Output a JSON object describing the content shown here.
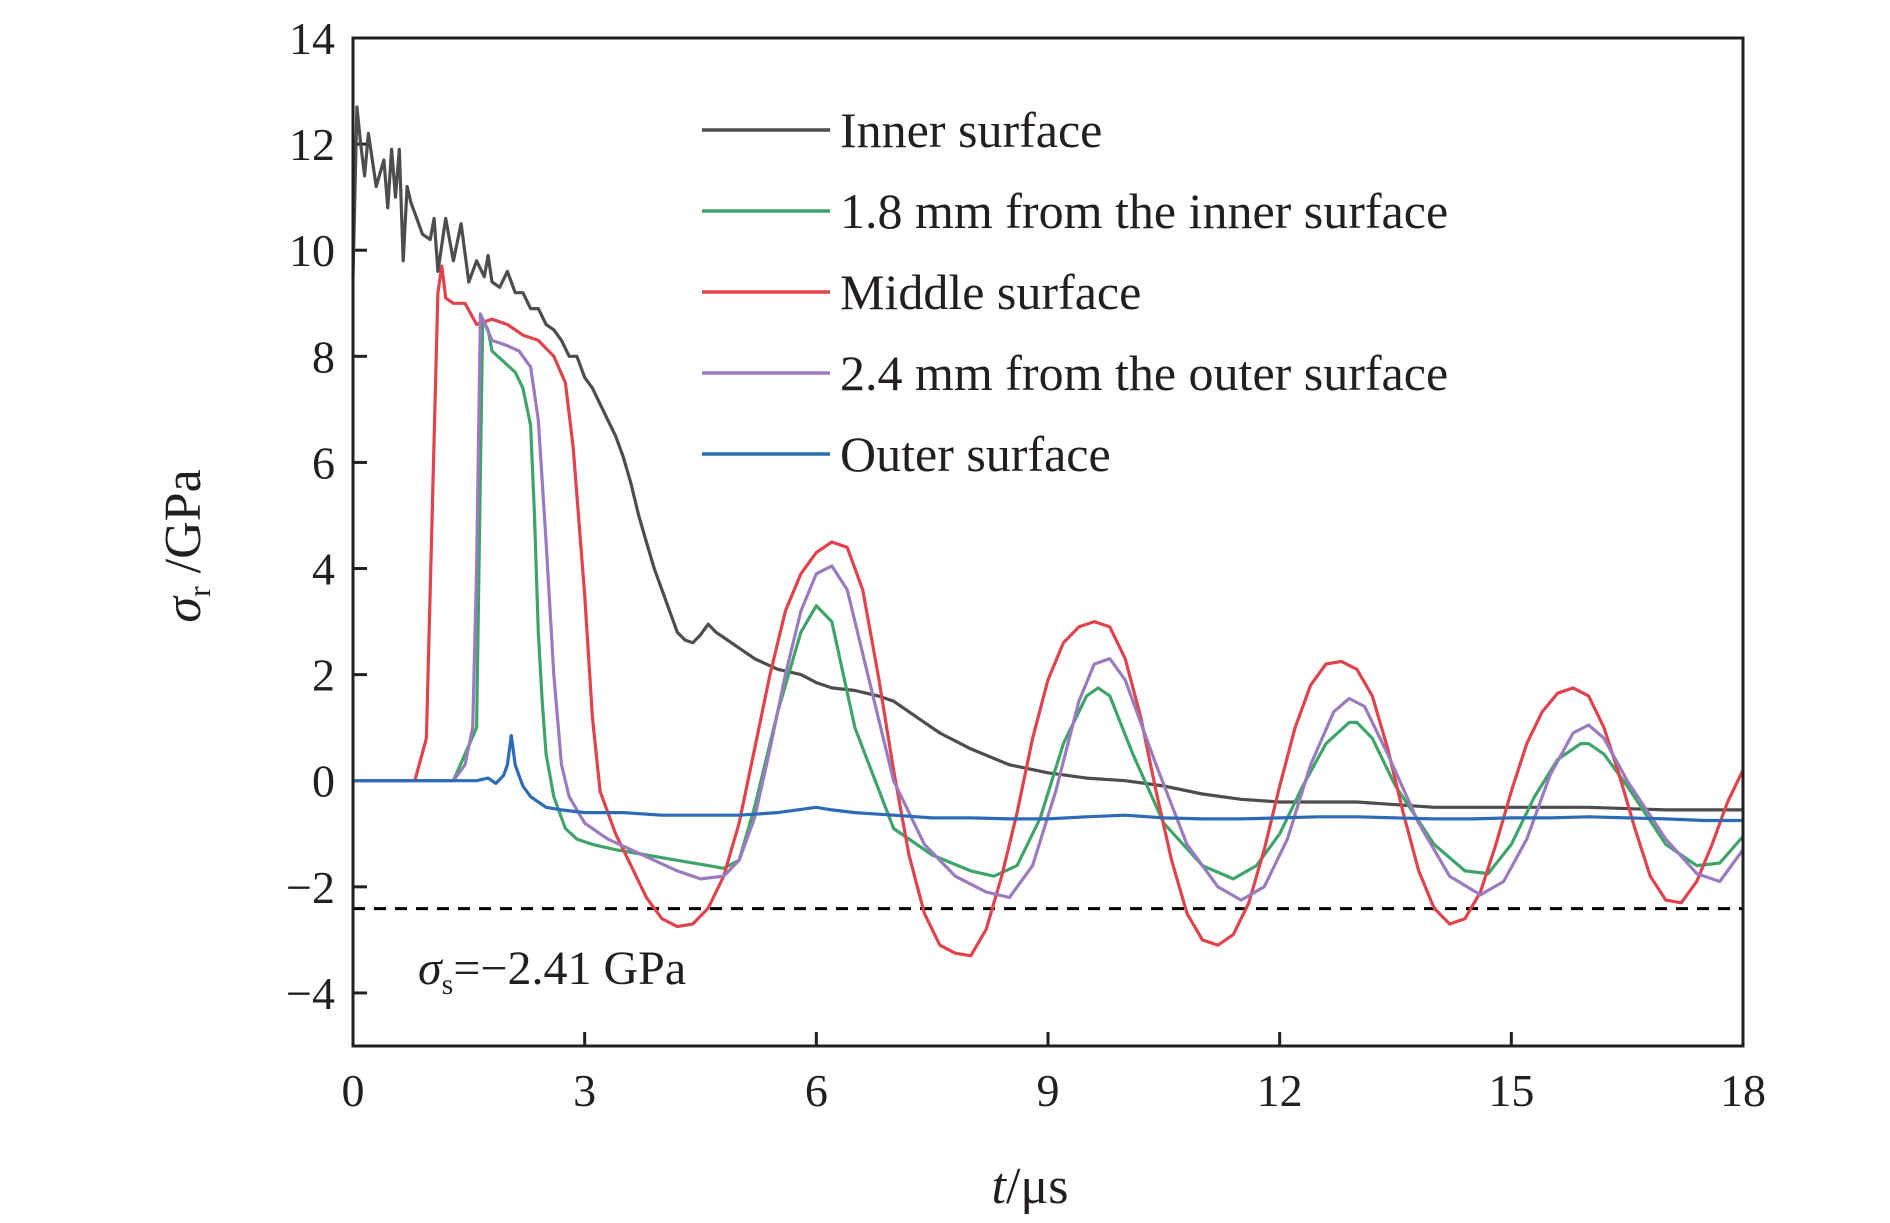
{
  "chart_data": {
    "type": "line",
    "xlabel": {
      "var": "t",
      "unit": "/μs"
    },
    "ylabel": {
      "var": "σ",
      "sub": "r",
      "unit": " /GPa"
    },
    "xlim": [
      0,
      18
    ],
    "ylim": [
      -5,
      14
    ],
    "xticks": [
      "0",
      "3",
      "6",
      "9",
      "12",
      "15",
      "18"
    ],
    "yticks": [
      "−4",
      "−2",
      "0",
      "2",
      "4",
      "6",
      "8",
      "10",
      "12",
      "14"
    ],
    "xtick_values": [
      0,
      3,
      6,
      9,
      12,
      15,
      18
    ],
    "ytick_values": [
      -4,
      -2,
      0,
      2,
      4,
      6,
      8,
      10,
      12,
      14
    ],
    "grid": false,
    "legend_position": "top-right",
    "reference_line": {
      "y": -2.41,
      "style": "dashed",
      "color": "#000000"
    },
    "annotation": {
      "var": "σ",
      "sub": "s",
      "text": "=−2.41 GPa"
    },
    "series": [
      {
        "name": "Inner surface",
        "color": "#4d4d4d",
        "x": [
          0,
          0.05,
          0.1,
          0.15,
          0.2,
          0.3,
          0.4,
          0.45,
          0.5,
          0.55,
          0.6,
          0.65,
          0.7,
          0.75,
          0.8,
          0.9,
          1.0,
          1.05,
          1.1,
          1.2,
          1.3,
          1.4,
          1.5,
          1.6,
          1.7,
          1.75,
          1.8,
          1.9,
          2.0,
          2.1,
          2.2,
          2.3,
          2.4,
          2.5,
          2.6,
          2.7,
          2.8,
          2.9,
          3.0,
          3.1,
          3.2,
          3.3,
          3.4,
          3.5,
          3.6,
          3.7,
          3.8,
          3.9,
          4.0,
          4.1,
          4.2,
          4.3,
          4.4,
          4.5,
          4.6,
          4.7,
          4.8,
          5.0,
          5.2,
          5.5,
          5.8,
          6.0,
          6.2,
          6.5,
          6.8,
          7.0,
          7.2,
          7.4,
          7.6,
          8.0,
          8.5,
          9.0,
          9.5,
          10.0,
          10.5,
          11.0,
          11.5,
          12.0,
          13.0,
          14.0,
          15.0,
          16.0,
          17.0,
          18.0
        ],
        "values": [
          9.5,
          12.7,
          12.0,
          11.4,
          12.2,
          11.2,
          11.7,
          10.8,
          11.9,
          11.0,
          11.9,
          9.8,
          11.2,
          10.9,
          10.7,
          10.3,
          10.2,
          10.6,
          9.6,
          10.6,
          9.8,
          10.5,
          9.4,
          9.8,
          9.5,
          9.9,
          9.4,
          9.3,
          9.6,
          9.2,
          9.2,
          8.9,
          8.9,
          8.6,
          8.5,
          8.3,
          8.0,
          8.0,
          7.6,
          7.4,
          7.1,
          6.8,
          6.5,
          6.1,
          5.6,
          5.0,
          4.5,
          4.0,
          3.6,
          3.2,
          2.8,
          2.65,
          2.6,
          2.75,
          2.95,
          2.8,
          2.7,
          2.5,
          2.3,
          2.1,
          2.0,
          1.85,
          1.75,
          1.7,
          1.6,
          1.5,
          1.3,
          1.1,
          0.9,
          0.6,
          0.3,
          0.15,
          0.05,
          0.0,
          -0.1,
          -0.25,
          -0.35,
          -0.4,
          -0.4,
          -0.5,
          -0.5,
          -0.5,
          -0.55,
          -0.55
        ]
      },
      {
        "name": "1.8 mm from the inner surface",
        "color": "#3fa46a",
        "x": [
          0,
          1.3,
          1.45,
          1.6,
          1.68,
          1.75,
          1.8,
          1.95,
          2.1,
          2.2,
          2.3,
          2.35,
          2.4,
          2.45,
          2.5,
          2.6,
          2.75,
          2.9,
          3.1,
          3.4,
          3.8,
          4.2,
          4.6,
          4.8,
          5.0,
          5.2,
          5.5,
          5.8,
          6.0,
          6.2,
          6.5,
          7.0,
          7.5,
          8.0,
          8.3,
          8.6,
          8.9,
          9.2,
          9.5,
          9.65,
          9.8,
          10.1,
          10.5,
          11.0,
          11.4,
          11.7,
          12.0,
          12.3,
          12.6,
          12.9,
          13.0,
          13.2,
          13.5,
          14.0,
          14.4,
          14.7,
          15.0,
          15.3,
          15.6,
          15.9,
          16.0,
          16.2,
          16.5,
          17.0,
          17.4,
          17.7,
          18.0
        ],
        "values": [
          0,
          0,
          0.5,
          1.0,
          8.7,
          8.5,
          8.1,
          7.9,
          7.7,
          7.4,
          6.7,
          5.0,
          2.8,
          1.5,
          0.5,
          -0.3,
          -0.9,
          -1.1,
          -1.2,
          -1.3,
          -1.4,
          -1.5,
          -1.6,
          -1.65,
          -1.5,
          -0.5,
          1.3,
          2.8,
          3.3,
          3.0,
          1.0,
          -0.9,
          -1.4,
          -1.7,
          -1.8,
          -1.6,
          -0.7,
          0.7,
          1.6,
          1.75,
          1.6,
          0.5,
          -0.8,
          -1.6,
          -1.85,
          -1.6,
          -1.0,
          -0.1,
          0.7,
          1.1,
          1.1,
          0.8,
          -0.1,
          -1.2,
          -1.7,
          -1.75,
          -1.2,
          -0.3,
          0.4,
          0.7,
          0.7,
          0.5,
          -0.1,
          -1.2,
          -1.6,
          -1.55,
          -1.05
        ]
      },
      {
        "name": "Middle surface",
        "color": "#e0434c",
        "x": [
          0,
          0.8,
          0.95,
          1.1,
          1.15,
          1.2,
          1.3,
          1.45,
          1.6,
          1.8,
          2.0,
          2.2,
          2.4,
          2.6,
          2.75,
          2.85,
          3.0,
          3.1,
          3.2,
          3.4,
          3.6,
          3.8,
          4.0,
          4.2,
          4.4,
          4.6,
          4.8,
          5.0,
          5.2,
          5.4,
          5.6,
          5.8,
          6.0,
          6.2,
          6.4,
          6.6,
          6.8,
          7.0,
          7.2,
          7.4,
          7.6,
          7.8,
          8.0,
          8.2,
          8.4,
          8.6,
          8.8,
          9.0,
          9.2,
          9.4,
          9.6,
          9.8,
          10.0,
          10.2,
          10.4,
          10.6,
          10.8,
          11.0,
          11.2,
          11.4,
          11.6,
          11.8,
          12.0,
          12.2,
          12.4,
          12.6,
          12.8,
          13.0,
          13.2,
          13.4,
          13.6,
          13.8,
          14.0,
          14.2,
          14.4,
          14.6,
          14.8,
          15.0,
          15.2,
          15.4,
          15.6,
          15.8,
          16.0,
          16.2,
          16.4,
          16.6,
          16.8,
          17.0,
          17.2,
          17.4,
          17.6,
          17.8,
          18.0
        ],
        "values": [
          0,
          0,
          0.8,
          9.2,
          9.7,
          9.1,
          9.0,
          9.0,
          8.6,
          8.7,
          8.6,
          8.4,
          8.3,
          8.0,
          7.5,
          6.3,
          3.5,
          1.2,
          -0.2,
          -1.0,
          -1.6,
          -2.2,
          -2.6,
          -2.75,
          -2.7,
          -2.4,
          -1.8,
          -0.8,
          0.6,
          2.0,
          3.2,
          3.9,
          4.3,
          4.5,
          4.4,
          3.6,
          2.0,
          0.2,
          -1.4,
          -2.5,
          -3.1,
          -3.25,
          -3.3,
          -2.8,
          -1.8,
          -0.6,
          0.8,
          1.9,
          2.6,
          2.9,
          3.0,
          2.9,
          2.3,
          1.2,
          -0.2,
          -1.5,
          -2.5,
          -3.0,
          -3.1,
          -2.9,
          -2.3,
          -1.3,
          -0.1,
          1.0,
          1.8,
          2.2,
          2.25,
          2.1,
          1.6,
          0.6,
          -0.6,
          -1.7,
          -2.4,
          -2.7,
          -2.6,
          -2.1,
          -1.2,
          -0.2,
          0.7,
          1.3,
          1.65,
          1.75,
          1.6,
          1.0,
          0.1,
          -0.9,
          -1.8,
          -2.25,
          -2.3,
          -1.9,
          -1.2,
          -0.4,
          0.2
        ]
      },
      {
        "name": "2.4 mm from the outer surface",
        "color": "#9a7bbe",
        "x": [
          0,
          1.3,
          1.45,
          1.55,
          1.6,
          1.65,
          1.8,
          2.0,
          2.15,
          2.3,
          2.4,
          2.5,
          2.6,
          2.7,
          2.8,
          3.0,
          3.3,
          3.6,
          3.9,
          4.2,
          4.5,
          4.8,
          5.0,
          5.2,
          5.4,
          5.6,
          5.8,
          6.0,
          6.2,
          6.4,
          6.7,
          7.0,
          7.4,
          7.8,
          8.2,
          8.5,
          8.8,
          9.1,
          9.4,
          9.6,
          9.8,
          10.0,
          10.4,
          10.8,
          11.2,
          11.5,
          11.8,
          12.1,
          12.4,
          12.7,
          12.9,
          13.1,
          13.4,
          13.8,
          14.2,
          14.6,
          14.9,
          15.2,
          15.5,
          15.8,
          16.0,
          16.2,
          16.5,
          17.0,
          17.4,
          17.7,
          18.0
        ],
        "values": [
          0,
          0,
          0.3,
          1.0,
          4.0,
          8.8,
          8.3,
          8.2,
          8.1,
          7.8,
          6.8,
          4.5,
          2.0,
          0.3,
          -0.3,
          -0.8,
          -1.1,
          -1.3,
          -1.5,
          -1.7,
          -1.85,
          -1.8,
          -1.5,
          -0.7,
          0.6,
          2.0,
          3.2,
          3.9,
          4.05,
          3.6,
          1.8,
          0.0,
          -1.2,
          -1.8,
          -2.1,
          -2.2,
          -1.6,
          -0.2,
          1.5,
          2.2,
          2.3,
          1.9,
          0.3,
          -1.2,
          -2.0,
          -2.25,
          -2.0,
          -1.1,
          0.3,
          1.3,
          1.55,
          1.4,
          0.5,
          -0.8,
          -1.8,
          -2.15,
          -1.9,
          -1.1,
          0.1,
          0.9,
          1.05,
          0.8,
          0.0,
          -1.1,
          -1.75,
          -1.9,
          -1.3
        ]
      },
      {
        "name": "Outer surface",
        "color": "#2e6bb6",
        "x": [
          0,
          1.6,
          1.75,
          1.85,
          1.95,
          2.0,
          2.05,
          2.1,
          2.15,
          2.2,
          2.3,
          2.5,
          2.7,
          3.0,
          3.5,
          4.0,
          4.5,
          5.0,
          5.5,
          6.0,
          6.2,
          6.5,
          7.0,
          7.5,
          8.0,
          8.5,
          9.0,
          9.5,
          10.0,
          10.5,
          11.0,
          11.5,
          12.0,
          12.5,
          13.0,
          13.5,
          14.0,
          14.5,
          15.0,
          15.5,
          16.0,
          16.5,
          17.0,
          17.5,
          18.0
        ],
        "values": [
          0,
          0,
          0.05,
          -0.05,
          0.1,
          0.3,
          0.85,
          0.3,
          0.1,
          -0.1,
          -0.3,
          -0.5,
          -0.55,
          -0.6,
          -0.6,
          -0.65,
          -0.65,
          -0.65,
          -0.6,
          -0.5,
          -0.55,
          -0.6,
          -0.65,
          -0.7,
          -0.7,
          -0.72,
          -0.72,
          -0.68,
          -0.65,
          -0.7,
          -0.72,
          -0.72,
          -0.7,
          -0.68,
          -0.68,
          -0.7,
          -0.72,
          -0.72,
          -0.7,
          -0.7,
          -0.68,
          -0.7,
          -0.72,
          -0.75,
          -0.75
        ]
      }
    ]
  }
}
